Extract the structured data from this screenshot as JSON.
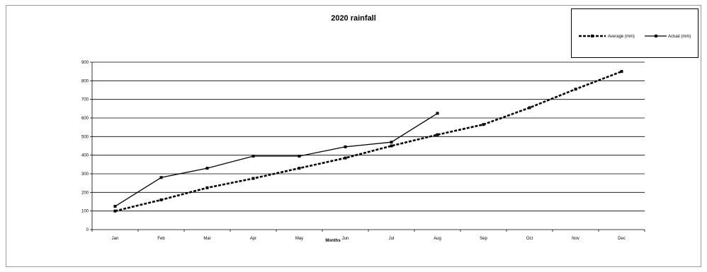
{
  "chart_data": {
    "type": "line",
    "title": "2020 rainfall",
    "xlabel": "Months",
    "ylabel": "",
    "categories": [
      "Jan",
      "Feb",
      "Mar",
      "Apr",
      "May",
      "Jun",
      "Jul",
      "Aug",
      "Sep",
      "Oct",
      "Nov",
      "Dec"
    ],
    "yticks": [
      "0",
      "100",
      "200",
      "300",
      "400",
      "500",
      "600",
      "700",
      "800",
      "900"
    ],
    "ylim": [
      0,
      900
    ],
    "grid": true,
    "legend_position": "top-right",
    "series": [
      {
        "name": "Average (mm)",
        "style": "dashed",
        "color": "#000000",
        "values": [
          100,
          160,
          225,
          275,
          330,
          385,
          450,
          510,
          565,
          655,
          755,
          850
        ]
      },
      {
        "name": "Actual (mm)",
        "style": "solid",
        "color": "#000000",
        "values": [
          125,
          280,
          330,
          395,
          395,
          445,
          470,
          625,
          null,
          null,
          null,
          null
        ]
      }
    ]
  }
}
